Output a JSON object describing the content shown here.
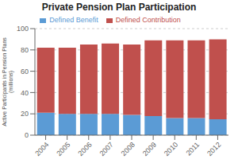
{
  "chart_data": {
    "type": "bar",
    "title": "Private Pension Plan Participation",
    "ylabel": "Active Participants in Pension Plans\n(millions)",
    "categories": [
      "2004",
      "2005",
      "2006",
      "2007",
      "2008",
      "2009",
      "2010",
      "2011",
      "2012"
    ],
    "series": [
      {
        "name": "Defined Benefit",
        "color": "#5b9bd5",
        "values": [
          21,
          20,
          20,
          20,
          19,
          18,
          16,
          16,
          15
        ]
      },
      {
        "name": "Defined Contribution",
        "color": "#c0504d",
        "values": [
          61,
          62,
          65,
          66,
          66,
          71,
          73,
          73,
          75
        ]
      }
    ],
    "stacked": true,
    "ylim": [
      0,
      100
    ],
    "yticks": [
      0,
      20,
      40,
      60,
      80,
      100
    ],
    "grid": true,
    "legend": "top"
  }
}
